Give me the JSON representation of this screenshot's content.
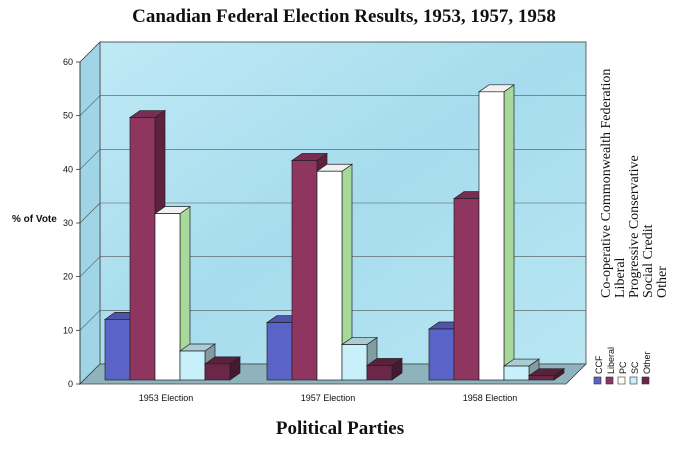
{
  "chart_data": {
    "type": "bar",
    "title": "Canadian Federal Election Results, 1953, 1957, 1958",
    "xlabel": "Political Parties",
    "ylabel": "% of Vote",
    "ylim": [
      0,
      60
    ],
    "yticks": [
      0,
      10,
      20,
      30,
      40,
      50,
      60
    ],
    "categories": [
      "1953 Election",
      "1957 Election",
      "1958 Election"
    ],
    "series": [
      {
        "name": "CCF",
        "values": [
          11.3,
          10.7,
          9.5
        ],
        "color": "#5a63c8"
      },
      {
        "name": "Liberal",
        "values": [
          48.9,
          40.9,
          33.8
        ],
        "color": "#8e3560"
      },
      {
        "name": "PC",
        "values": [
          31.0,
          38.9,
          53.7
        ],
        "color": "#ffffff"
      },
      {
        "name": "SC",
        "values": [
          5.4,
          6.6,
          2.6
        ],
        "color": "#c8f0fa"
      },
      {
        "name": "Other",
        "values": [
          3.0,
          2.7,
          0.8
        ],
        "color": "#6a2748"
      }
    ],
    "legend_long": [
      "Co-operative Commonwealth Federation",
      "Liberal",
      "Progressive Conservative",
      "Social Credit",
      "Other"
    ],
    "grid": true,
    "legend": "right"
  }
}
